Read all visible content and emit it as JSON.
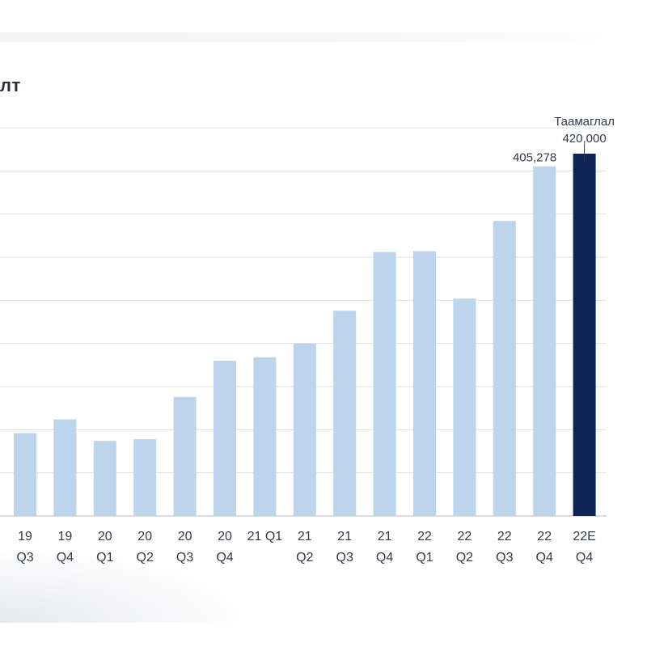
{
  "title": "лт",
  "chart_data": {
    "type": "bar",
    "categories": [
      [
        "19",
        "Q3"
      ],
      [
        "19",
        "Q4"
      ],
      [
        "20",
        "Q1"
      ],
      [
        "20",
        "Q2"
      ],
      [
        "20",
        "Q3"
      ],
      [
        "20",
        "Q4"
      ],
      [
        "21 Q1",
        ""
      ],
      [
        "21",
        "Q2"
      ],
      [
        "21",
        "Q3"
      ],
      [
        "21",
        "Q4"
      ],
      [
        "22",
        "Q1"
      ],
      [
        "22",
        "Q2"
      ],
      [
        "22",
        "Q3"
      ],
      [
        "22",
        "Q4"
      ],
      [
        "22E",
        "Q4"
      ]
    ],
    "values": [
      96000,
      112000,
      87000,
      89000,
      138000,
      180000,
      184000,
      200000,
      238000,
      306000,
      307000,
      252000,
      342000,
      405278,
      420000
    ],
    "ylim": [
      0,
      450000
    ],
    "grid": true,
    "colors": {
      "actual": "#bcd5ec",
      "forecast": "#0e2356",
      "grid": "#dedfe2",
      "axis": "#c4c6ca"
    },
    "annotations": [
      {
        "category_index": 13,
        "label": "405,278"
      },
      {
        "category_index": 14,
        "label": "420,000",
        "caption": "Таамаглал"
      }
    ]
  }
}
